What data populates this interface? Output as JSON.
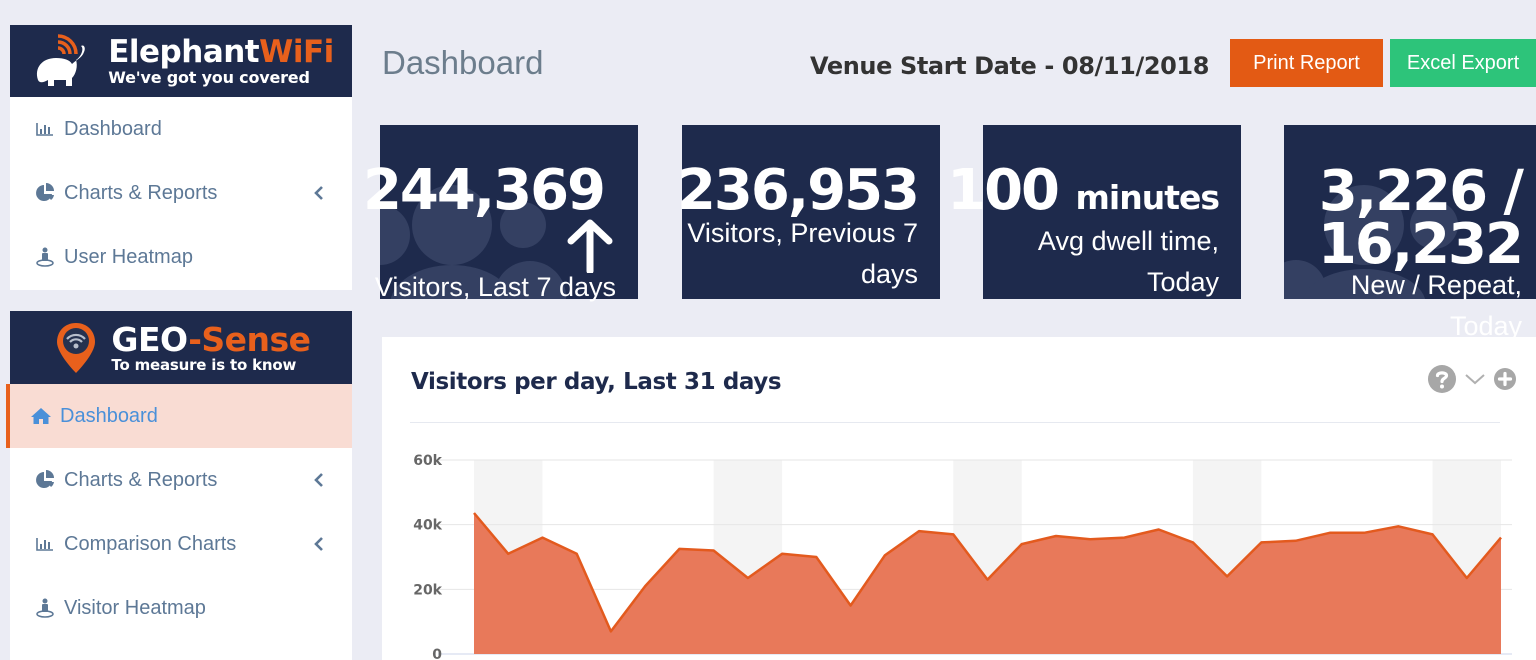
{
  "sidebar": {
    "elephant_panel": {
      "brand_name_a": "Elephant",
      "brand_name_b": "WiFi",
      "brand_tagline": "We've got you covered",
      "items": [
        {
          "label": "Dashboard",
          "icon": "bar-chart-icon",
          "has_chevron": false
        },
        {
          "label": "Charts & Reports",
          "icon": "pie-chart-icon",
          "has_chevron": true
        },
        {
          "label": "User Heatmap",
          "icon": "street-view-icon",
          "has_chevron": false
        }
      ]
    },
    "geo_panel": {
      "brand_name_a": "GEO",
      "brand_name_b": "-Sense",
      "brand_tagline": "To measure is to know",
      "items": [
        {
          "label": "Dashboard",
          "icon": "home-icon",
          "has_chevron": false,
          "active": true
        },
        {
          "label": "Charts & Reports",
          "icon": "pie-chart-icon",
          "has_chevron": true
        },
        {
          "label": "Comparison Charts",
          "icon": "bar-chart-icon",
          "has_chevron": true
        },
        {
          "label": "Visitor Heatmap",
          "icon": "street-view-icon",
          "has_chevron": false
        }
      ]
    }
  },
  "header": {
    "title": "Dashboard",
    "venue_start_date": "Venue Start Date - 08/11/2018",
    "print_button": "Print Report",
    "excel_button": "Excel Export"
  },
  "stats": [
    {
      "value": "244,369",
      "label": "Visitors, Last 7 days",
      "trend": "up"
    },
    {
      "value": "236,953",
      "label": "Visitors, Previous 7 days"
    },
    {
      "value": "100",
      "unit": "minutes",
      "label": "Avg dwell time, Today"
    },
    {
      "value_line1": "3,226 /",
      "value_line2": "16,232",
      "label": "New / Repeat, Today"
    }
  ],
  "colors": {
    "navy": "#1e2a4c",
    "orange": "#e35a14",
    "green": "#2dc47a",
    "area_fill": "#e8795a",
    "area_line": "#e35a1e",
    "active_bg": "#f9dcd3",
    "active_text": "#4a90d9"
  },
  "chart": {
    "title": "Visitors per day, Last 31 days",
    "tools": [
      "help-icon",
      "chevron-down-icon",
      "plus-circle-icon"
    ]
  },
  "chart_data": {
    "type": "area",
    "title": "Visitors per day, Last 31 days",
    "xlabel": "",
    "ylabel": "",
    "ylim": [
      0,
      60000
    ],
    "yticks": [
      "0",
      "20k",
      "40k",
      "60k"
    ],
    "grid": true,
    "x": [
      1,
      2,
      3,
      4,
      5,
      6,
      7,
      8,
      9,
      10,
      11,
      12,
      13,
      14,
      15,
      16,
      17,
      18,
      19,
      20,
      21,
      22,
      23,
      24,
      25,
      26,
      27,
      28,
      29,
      30,
      31
    ],
    "values": [
      43600,
      31000,
      36000,
      31000,
      7000,
      21000,
      32500,
      32000,
      23500,
      31000,
      30000,
      15000,
      30500,
      38000,
      37000,
      23000,
      34000,
      36500,
      35500,
      36000,
      38500,
      34500,
      24000,
      34500,
      35000,
      37500,
      37500,
      39500,
      37000,
      23500,
      36000
    ],
    "shaded_bands_day_ranges": [
      [
        1,
        3
      ],
      [
        8,
        10
      ],
      [
        15,
        17
      ],
      [
        22,
        24
      ],
      [
        29,
        31
      ]
    ],
    "legend": null
  }
}
